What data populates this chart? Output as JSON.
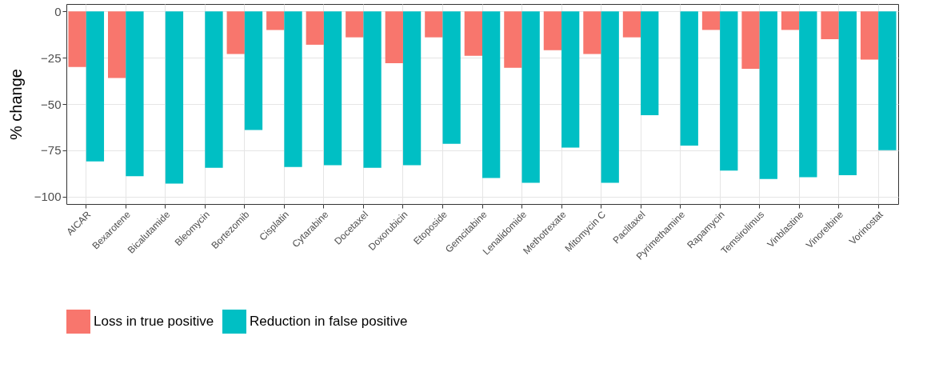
{
  "chart_data": {
    "type": "bar",
    "ylabel": "% change",
    "categories": [
      "AICAR",
      "Bexarotene",
      "Bicalutamide",
      "Bleomycin",
      "Bortezomib",
      "Cisplatin",
      "Cytarabine",
      "Docetaxel",
      "Doxorubicin",
      "Etoposide",
      "Gemcitabine",
      "Lenalidomide",
      "Methotrexate",
      "Mitomycin C",
      "Paclitaxel",
      "Pyrimethamine",
      "Rapamycin",
      "Temsirolimus",
      "Vinblastine",
      "Vinorelbine",
      "Vorinostat"
    ],
    "series": [
      {
        "name": "Loss in true positive",
        "color": "#f8766d",
        "values": [
          -30,
          -36,
          null,
          null,
          -23,
          -10,
          -18,
          -14,
          -28,
          -14,
          -24,
          -30.5,
          -21,
          -23,
          -14,
          null,
          -10,
          -31,
          -10,
          -15,
          -26
        ]
      },
      {
        "name": "Reduction in false positive",
        "color": "#00bfc4",
        "values": [
          -81,
          -89,
          -93,
          -84.5,
          -64,
          -84,
          -83,
          -84.5,
          -83,
          -71.5,
          -90,
          -92.5,
          -73.5,
          -92.5,
          -56,
          -72.5,
          -86,
          -90.5,
          -89.5,
          -88.5,
          -75
        ]
      }
    ],
    "ylim": [
      -104,
      4
    ],
    "yticks": [
      -100,
      -75,
      -50,
      -25,
      0
    ],
    "grid": true,
    "legend": "bottom"
  }
}
